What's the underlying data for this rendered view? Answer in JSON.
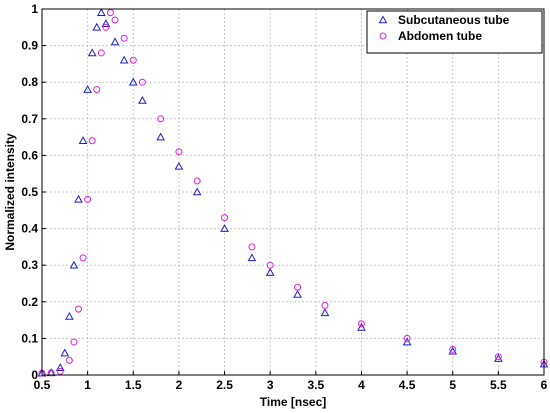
{
  "chart_data": {
    "type": "scatter",
    "xlabel": "Time [nsec]",
    "ylabel": "Normalized intensity",
    "xlim": [
      0.5,
      6
    ],
    "ylim": [
      0,
      1
    ],
    "xticks": [
      "0.5",
      "1",
      "1.5",
      "2",
      "2.5",
      "3",
      "3.5",
      "4",
      "4.5",
      "5",
      "5.5",
      "6"
    ],
    "yticks": [
      "0",
      "0.1",
      "0.2",
      "0.3",
      "0.4",
      "0.5",
      "0.6",
      "0.7",
      "0.8",
      "0.9",
      "1"
    ],
    "grid": true,
    "legend": "top-right",
    "series": [
      {
        "name": "Subcutaneous tube",
        "marker": "triangle",
        "color": "#1f1fc8",
        "x": [
          0.5,
          0.6,
          0.7,
          0.75,
          0.8,
          0.85,
          0.9,
          0.95,
          1.0,
          1.05,
          1.1,
          1.15,
          1.2,
          1.3,
          1.4,
          1.5,
          1.6,
          1.8,
          2.0,
          2.2,
          2.5,
          2.8,
          3.0,
          3.3,
          3.6,
          4.0,
          4.5,
          5.0,
          5.5,
          6.0
        ],
        "y": [
          0.005,
          0.006,
          0.02,
          0.06,
          0.16,
          0.3,
          0.48,
          0.64,
          0.78,
          0.88,
          0.95,
          0.99,
          0.96,
          0.91,
          0.86,
          0.8,
          0.75,
          0.65,
          0.57,
          0.5,
          0.4,
          0.32,
          0.28,
          0.22,
          0.17,
          0.13,
          0.09,
          0.065,
          0.045,
          0.03
        ]
      },
      {
        "name": "Abdomen tube",
        "marker": "circle",
        "color": "#e020e0",
        "x": [
          0.5,
          0.6,
          0.7,
          0.8,
          0.85,
          0.9,
          0.95,
          1.0,
          1.05,
          1.1,
          1.15,
          1.2,
          1.25,
          1.3,
          1.4,
          1.5,
          1.6,
          1.8,
          2.0,
          2.2,
          2.5,
          2.8,
          3.0,
          3.3,
          3.6,
          4.0,
          4.5,
          5.0,
          5.5,
          6.0
        ],
        "y": [
          0.005,
          0.006,
          0.01,
          0.04,
          0.09,
          0.18,
          0.32,
          0.48,
          0.64,
          0.78,
          0.88,
          0.95,
          0.99,
          0.97,
          0.92,
          0.86,
          0.8,
          0.7,
          0.61,
          0.53,
          0.43,
          0.35,
          0.3,
          0.24,
          0.19,
          0.14,
          0.1,
          0.07,
          0.05,
          0.035
        ]
      }
    ]
  }
}
